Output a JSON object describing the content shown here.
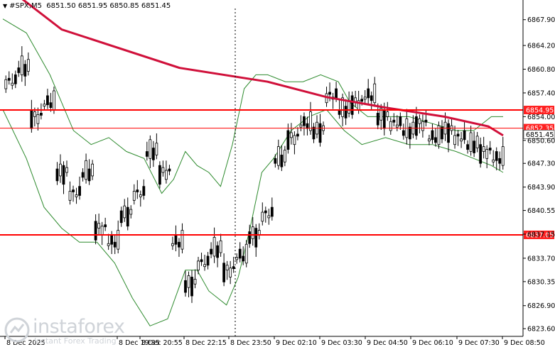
{
  "header": {
    "symbol": "#SPX,M5",
    "ohlc": "6851.50 6851.95 6850.85 6851.45"
  },
  "watermark": {
    "name": "instaforex",
    "tagline": "Instant Forex Trading"
  },
  "colors": {
    "level_line": "#ff0000",
    "ma_line": "#d0103a",
    "bands": "#2e8b2e",
    "candle": "#000000",
    "price_label_bg": "#ff2020",
    "current_label_bg": "#ffffff"
  },
  "chart_data": {
    "type": "candlestick",
    "ylim": [
      6822.5,
      6869.5
    ],
    "grid": false,
    "y_ticks": [
      "6867.90",
      "6864.20",
      "6860.80",
      "6857.40",
      "6854.00",
      "6850.60",
      "6847.30",
      "6843.90",
      "6840.55",
      "6837.15",
      "6833.70",
      "6830.35",
      "6826.90",
      "6823.60"
    ],
    "x_ticks": [
      "8 Dec 2025",
      "8 Dec 19:35",
      "8 Dec 20:55",
      "8 Dec 22:15",
      "8 Dec 23:50",
      "9 Dec 02:10",
      "9 Dec 03:30",
      "9 Dec 04:50",
      "9 Dec 06:10",
      "9 Dec 07:30",
      "9 Dec 08:50"
    ],
    "levels": [
      {
        "value": 6854.95,
        "label": "6854.95",
        "style": "solid"
      },
      {
        "value": 6852.35,
        "label": "6852.35",
        "style": "thin"
      },
      {
        "value": 6837.05,
        "label": "6837.05",
        "style": "solid"
      }
    ],
    "current_price": {
      "value": 6851.45,
      "label": "6851.45"
    },
    "moving_average": [
      [
        0,
        6873.0
      ],
      [
        20,
        6866.5
      ],
      [
        60,
        6861.0
      ],
      [
        90,
        6859.0
      ],
      [
        110,
        6856.8
      ],
      [
        130,
        6855.3
      ],
      [
        150,
        6854.0
      ],
      [
        165,
        6852.6
      ],
      [
        170,
        6851.3
      ]
    ],
    "bollinger_upper": [
      [
        0,
        6868
      ],
      [
        8,
        6866
      ],
      [
        16,
        6860
      ],
      [
        24,
        6852
      ],
      [
        30,
        6850
      ],
      [
        36,
        6851
      ],
      [
        42,
        6849
      ],
      [
        48,
        6848
      ],
      [
        54,
        6843
      ],
      [
        58,
        6845
      ],
      [
        62,
        6849
      ],
      [
        66,
        6847
      ],
      [
        70,
        6846
      ],
      [
        74,
        6844
      ],
      [
        78,
        6850
      ],
      [
        82,
        6858
      ],
      [
        86,
        6860
      ],
      [
        90,
        6860
      ],
      [
        96,
        6859
      ],
      [
        102,
        6859
      ],
      [
        108,
        6860
      ],
      [
        114,
        6859
      ],
      [
        118,
        6856
      ],
      [
        124,
        6854
      ],
      [
        130,
        6854
      ],
      [
        138,
        6854
      ],
      [
        146,
        6853
      ],
      [
        154,
        6852
      ],
      [
        160,
        6852
      ],
      [
        166,
        6854
      ],
      [
        170,
        6854
      ]
    ],
    "bollinger_lower": [
      [
        0,
        6855
      ],
      [
        8,
        6848
      ],
      [
        14,
        6841
      ],
      [
        20,
        6838
      ],
      [
        26,
        6836
      ],
      [
        32,
        6836
      ],
      [
        38,
        6833
      ],
      [
        44,
        6828
      ],
      [
        50,
        6824
      ],
      [
        56,
        6825
      ],
      [
        62,
        6832
      ],
      [
        66,
        6832
      ],
      [
        70,
        6829
      ],
      [
        76,
        6827
      ],
      [
        80,
        6831
      ],
      [
        84,
        6838
      ],
      [
        88,
        6846
      ],
      [
        92,
        6848
      ],
      [
        98,
        6852
      ],
      [
        104,
        6854
      ],
      [
        110,
        6855
      ],
      [
        116,
        6852
      ],
      [
        122,
        6850
      ],
      [
        130,
        6851
      ],
      [
        138,
        6850
      ],
      [
        146,
        6850
      ],
      [
        154,
        6849
      ],
      [
        160,
        6848
      ],
      [
        166,
        6847
      ],
      [
        170,
        6846
      ]
    ],
    "candles_ohlc": [
      [
        6863,
        6866,
        6857,
        6859
      ],
      [
        6859,
        6864,
        6855,
        6861
      ],
      [
        6861,
        6862,
        6852,
        6854
      ],
      [
        6854,
        6859,
        6849,
        6856
      ],
      [
        6856,
        6858,
        6843,
        6846
      ],
      [
        6846,
        6852,
        6838,
        6843
      ],
      [
        6843,
        6848,
        6839,
        6846
      ],
      [
        6846,
        6850,
        6835,
        6838
      ],
      [
        6838,
        6842,
        6834,
        6836
      ],
      [
        6836,
        6843,
        6832,
        6840
      ],
      [
        6840,
        6846,
        6836,
        6843
      ],
      [
        6843,
        6851,
        6839,
        6849
      ],
      [
        6849,
        6851,
        6844,
        6846
      ],
      [
        6846,
        6848,
        6833,
        6836
      ],
      [
        6836,
        6840,
        6828,
        6830
      ],
      [
        6830,
        6836,
        6827,
        6833
      ],
      [
        6833,
        6837,
        6829,
        6835
      ],
      [
        6835,
        6838,
        6831,
        6832
      ],
      [
        6832,
        6836,
        6829,
        6834
      ],
      [
        6834,
        6839,
        6832,
        6837
      ],
      [
        6837,
        6842,
        6834,
        6840
      ],
      [
        6840,
        6849,
        6837,
        6848
      ],
      [
        6848,
        6852,
        6846,
        6851
      ],
      [
        6851,
        6855,
        6849,
        6853
      ],
      [
        6853,
        6855,
        6850,
        6852
      ],
      [
        6852,
        6858,
        6851,
        6857
      ],
      [
        6857,
        6859,
        6854,
        6855
      ],
      [
        6855,
        6857,
        6853,
        6856
      ],
      [
        6856,
        6859,
        6854,
        6857
      ],
      [
        6857,
        6858,
        6853,
        6854
      ],
      [
        6854,
        6856,
        6851,
        6853
      ],
      [
        6853,
        6856,
        6850,
        6852
      ],
      [
        6852,
        6855,
        6849,
        6853
      ],
      [
        6853,
        6855,
        6850,
        6851
      ],
      [
        6851,
        6854,
        6850,
        6852
      ],
      [
        6852,
        6854,
        6850,
        6851
      ],
      [
        6851,
        6853,
        6849,
        6850
      ],
      [
        6850,
        6852,
        6847,
        6849
      ],
      [
        6849,
        6851,
        6846,
        6848
      ],
      [
        6848,
        6851,
        6846,
        6851
      ]
    ]
  }
}
